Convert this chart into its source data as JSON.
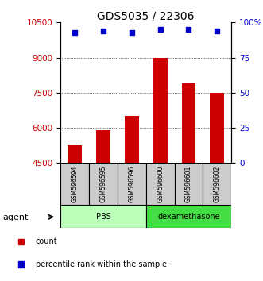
{
  "title": "GDS5035 / 22306",
  "samples": [
    "GSM596594",
    "GSM596595",
    "GSM596596",
    "GSM596600",
    "GSM596601",
    "GSM596602"
  ],
  "bar_values": [
    5250,
    5900,
    6500,
    9000,
    7900,
    7500
  ],
  "percentile_values": [
    93,
    94,
    93,
    95,
    95,
    94
  ],
  "bar_color": "#cc0000",
  "percentile_color": "#0000cc",
  "ylim_left": [
    4500,
    10500
  ],
  "ylim_right": [
    0,
    100
  ],
  "yticks_left": [
    4500,
    6000,
    7500,
    9000,
    10500
  ],
  "yticks_right": [
    0,
    25,
    50,
    75,
    100
  ],
  "ytick_labels_right": [
    "0",
    "25",
    "50",
    "75",
    "100%"
  ],
  "groups": [
    {
      "label": "PBS",
      "indices": [
        0,
        1,
        2
      ],
      "color": "#bbffbb"
    },
    {
      "label": "dexamethasone",
      "indices": [
        3,
        4,
        5
      ],
      "color": "#44dd44"
    }
  ],
  "group_row_label": "agent",
  "legend_count_label": "count",
  "legend_percentile_label": "percentile rank within the sample",
  "sample_box_color": "#cccccc",
  "title_fontsize": 10,
  "tick_fontsize": 7.5,
  "legend_fontsize": 7
}
